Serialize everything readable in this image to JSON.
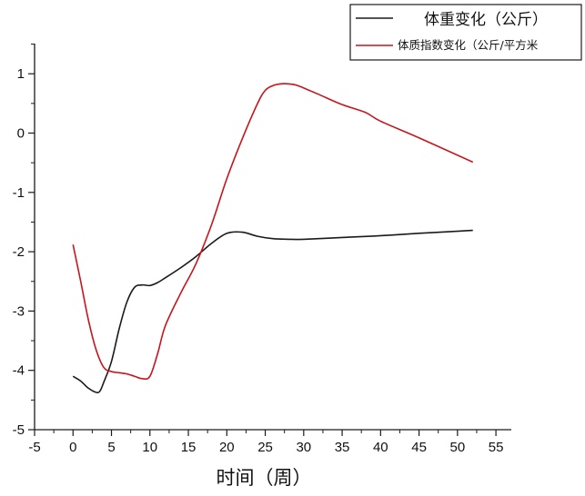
{
  "chart_data": {
    "type": "line",
    "title": "",
    "xlabel": "时间（周）",
    "ylabel": "",
    "xlim": [
      -5,
      57
    ],
    "ylim": [
      -5,
      1.5
    ],
    "xticks": [
      "-5",
      "0",
      "5",
      "10",
      "15",
      "20",
      "25",
      "30",
      "35",
      "40",
      "45",
      "50",
      "55"
    ],
    "yticks": [
      "1",
      "0",
      "-1",
      "-2",
      "-3",
      "-4",
      "-5"
    ],
    "legend_position": "top-right",
    "grid": false,
    "series": [
      {
        "name": "体重变化（公斤）",
        "color": "#1a1a1a",
        "x": [
          0,
          1,
          2,
          3,
          3.5,
          4,
          5,
          6,
          7,
          8,
          9,
          10,
          11,
          12,
          14,
          16,
          18,
          20,
          22,
          24,
          26,
          28,
          30,
          35,
          40,
          45,
          52
        ],
        "y": [
          -4.1,
          -4.18,
          -4.3,
          -4.37,
          -4.35,
          -4.2,
          -3.85,
          -3.3,
          -2.85,
          -2.6,
          -2.56,
          -2.57,
          -2.52,
          -2.44,
          -2.27,
          -2.08,
          -1.86,
          -1.69,
          -1.67,
          -1.74,
          -1.78,
          -1.79,
          -1.79,
          -1.76,
          -1.73,
          -1.69,
          -1.64
        ]
      },
      {
        "name": "体质指数变化（公斤/平方米",
        "color": "#c8141c",
        "x": [
          0,
          1,
          2,
          3,
          4,
          5,
          6,
          7,
          8,
          9,
          10,
          11,
          12,
          14,
          16,
          18,
          20,
          22,
          24,
          25,
          26,
          27,
          28,
          29,
          30,
          32,
          35,
          38,
          40,
          45,
          52
        ],
        "y": [
          -1.88,
          -2.5,
          -3.15,
          -3.65,
          -3.95,
          -4.02,
          -4.04,
          -4.06,
          -4.1,
          -4.14,
          -4.1,
          -3.72,
          -3.25,
          -2.7,
          -2.2,
          -1.55,
          -0.77,
          -0.1,
          0.5,
          0.72,
          0.8,
          0.83,
          0.83,
          0.81,
          0.76,
          0.65,
          0.48,
          0.35,
          0.2,
          -0.08,
          -0.49
        ]
      }
    ]
  }
}
